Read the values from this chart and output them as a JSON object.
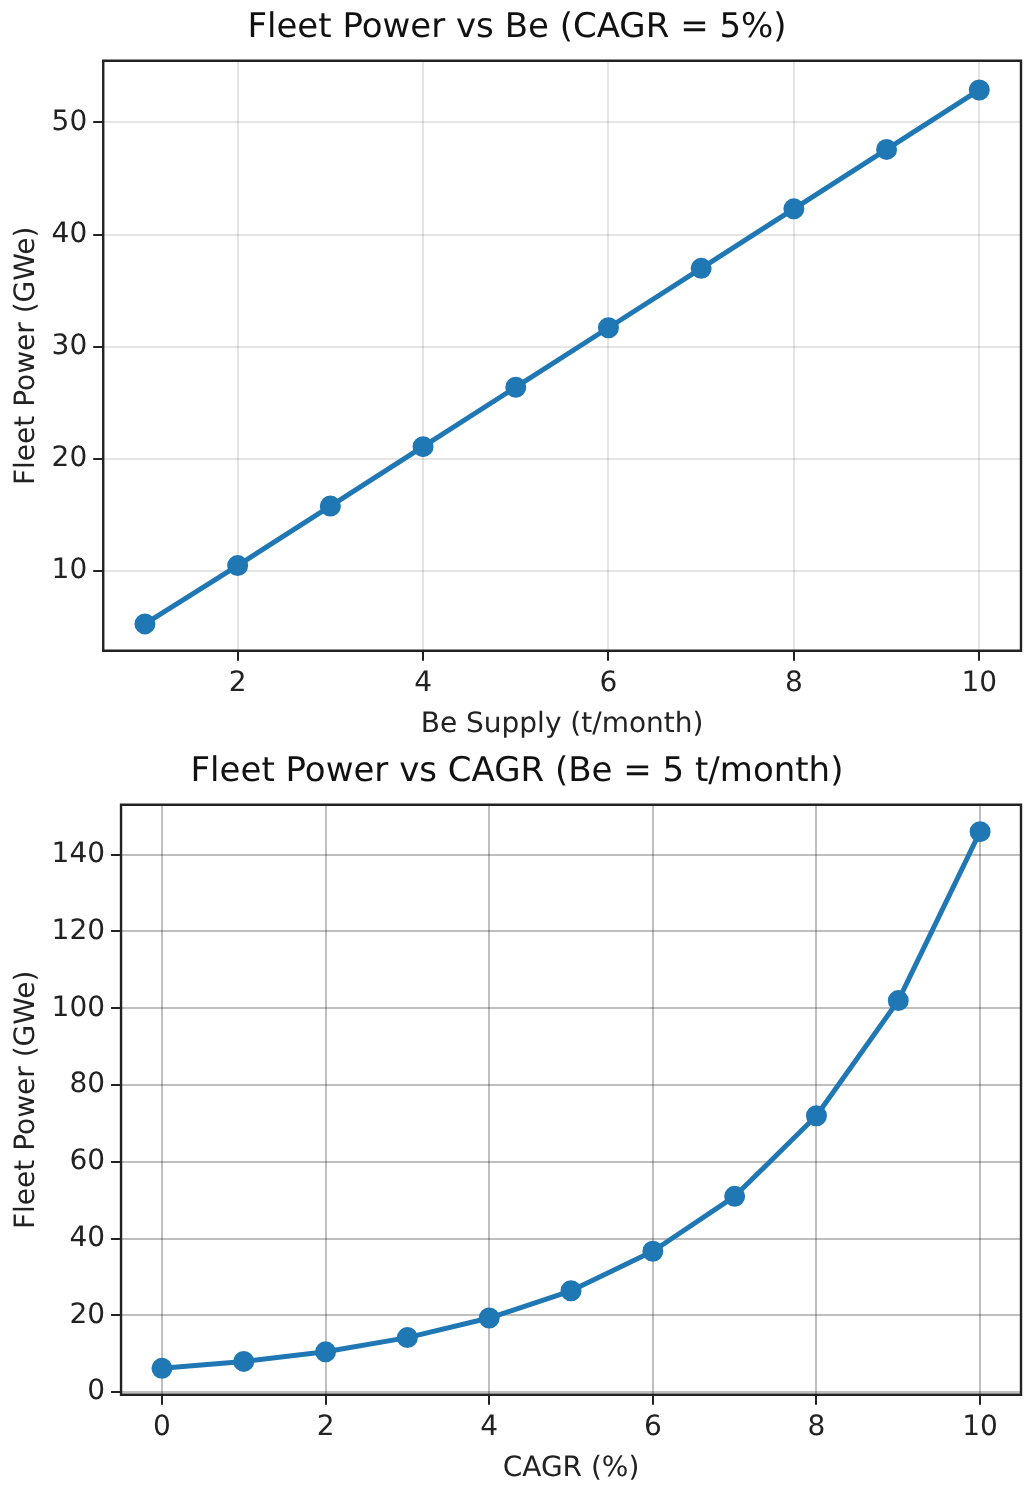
{
  "chart_data": [
    {
      "type": "line",
      "title": "Fleet Power vs Be (CAGR = 5%)",
      "xlabel": "Be Supply (t/month)",
      "ylabel": "Fleet Power (GWe)",
      "x": [
        1,
        2,
        3,
        4,
        5,
        6,
        7,
        8,
        9,
        10
      ],
      "series": [
        {
          "color": "#1f77b4",
          "values": [
            5.3,
            10.5,
            15.8,
            21.1,
            26.4,
            31.7,
            37.0,
            42.3,
            47.6,
            52.9
          ]
        }
      ],
      "xlim": [
        0.55,
        10.45
      ],
      "xticks": [
        2,
        4,
        6,
        8,
        10
      ],
      "ylim": [
        2.9,
        55.5
      ],
      "yticks": [
        10,
        20,
        30,
        40,
        50
      ],
      "grid": true,
      "marker": "circle",
      "line_style": "solid"
    },
    {
      "type": "line",
      "title": "Fleet Power vs CAGR (Be = 5 t/month)",
      "xlabel": "CAGR (%)",
      "ylabel": "Fleet Power (GWe)",
      "x": [
        0,
        1,
        2,
        3,
        4,
        5,
        6,
        7,
        8,
        9,
        10
      ],
      "series": [
        {
          "color": "#1f77b4",
          "values": [
            6.2,
            8.0,
            10.5,
            14.2,
            19.3,
            26.4,
            36.7,
            51.0,
            72.0,
            102.0,
            146.0
          ]
        }
      ],
      "xlim": [
        -0.5,
        10.5
      ],
      "xticks": [
        0,
        2,
        4,
        6,
        8,
        10
      ],
      "ylim": [
        -0.7,
        153
      ],
      "yticks": [
        0,
        20,
        40,
        60,
        80,
        100,
        120,
        140
      ],
      "grid": true,
      "marker": "circle",
      "line_style": "solid"
    }
  ]
}
